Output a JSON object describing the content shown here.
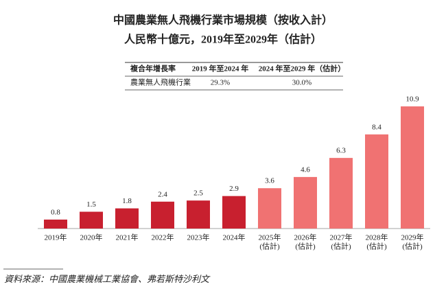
{
  "chart_data": {
    "type": "bar",
    "title": "中國農業無人飛機行業市場規模（按收入計）",
    "subtitle": "人民幣十億元，2019年至2029年（估計）",
    "categories": [
      [
        "2019年"
      ],
      [
        "2020年"
      ],
      [
        "2021年"
      ],
      [
        "2022年"
      ],
      [
        "2023年"
      ],
      [
        "2024年"
      ],
      [
        "2025年",
        "(估計)"
      ],
      [
        "2026年",
        "(估計)"
      ],
      [
        "2027年",
        "(估計)"
      ],
      [
        "2028年",
        "(估計)"
      ],
      [
        "2029年",
        "(估計)"
      ]
    ],
    "values": [
      0.8,
      1.5,
      1.8,
      2.4,
      2.5,
      2.9,
      3.6,
      4.6,
      6.3,
      8.4,
      10.9
    ],
    "colors": [
      "#c8202f",
      "#c8202f",
      "#c8202f",
      "#c8202f",
      "#c8202f",
      "#c8202f",
      "#f07272",
      "#f07272",
      "#f07272",
      "#f07272",
      "#f07272"
    ],
    "ylim": [
      0,
      10.9
    ]
  },
  "table": {
    "header": [
      "複合年增長率",
      "2019 年至2024 年",
      "2024 年至2029 年（估計）"
    ],
    "rows": [
      [
        "農業無人飛機行業",
        "29.3%",
        "30.0%"
      ]
    ]
  },
  "source": "資料來源：中國農業機械工業協會、弗若斯特沙利文"
}
